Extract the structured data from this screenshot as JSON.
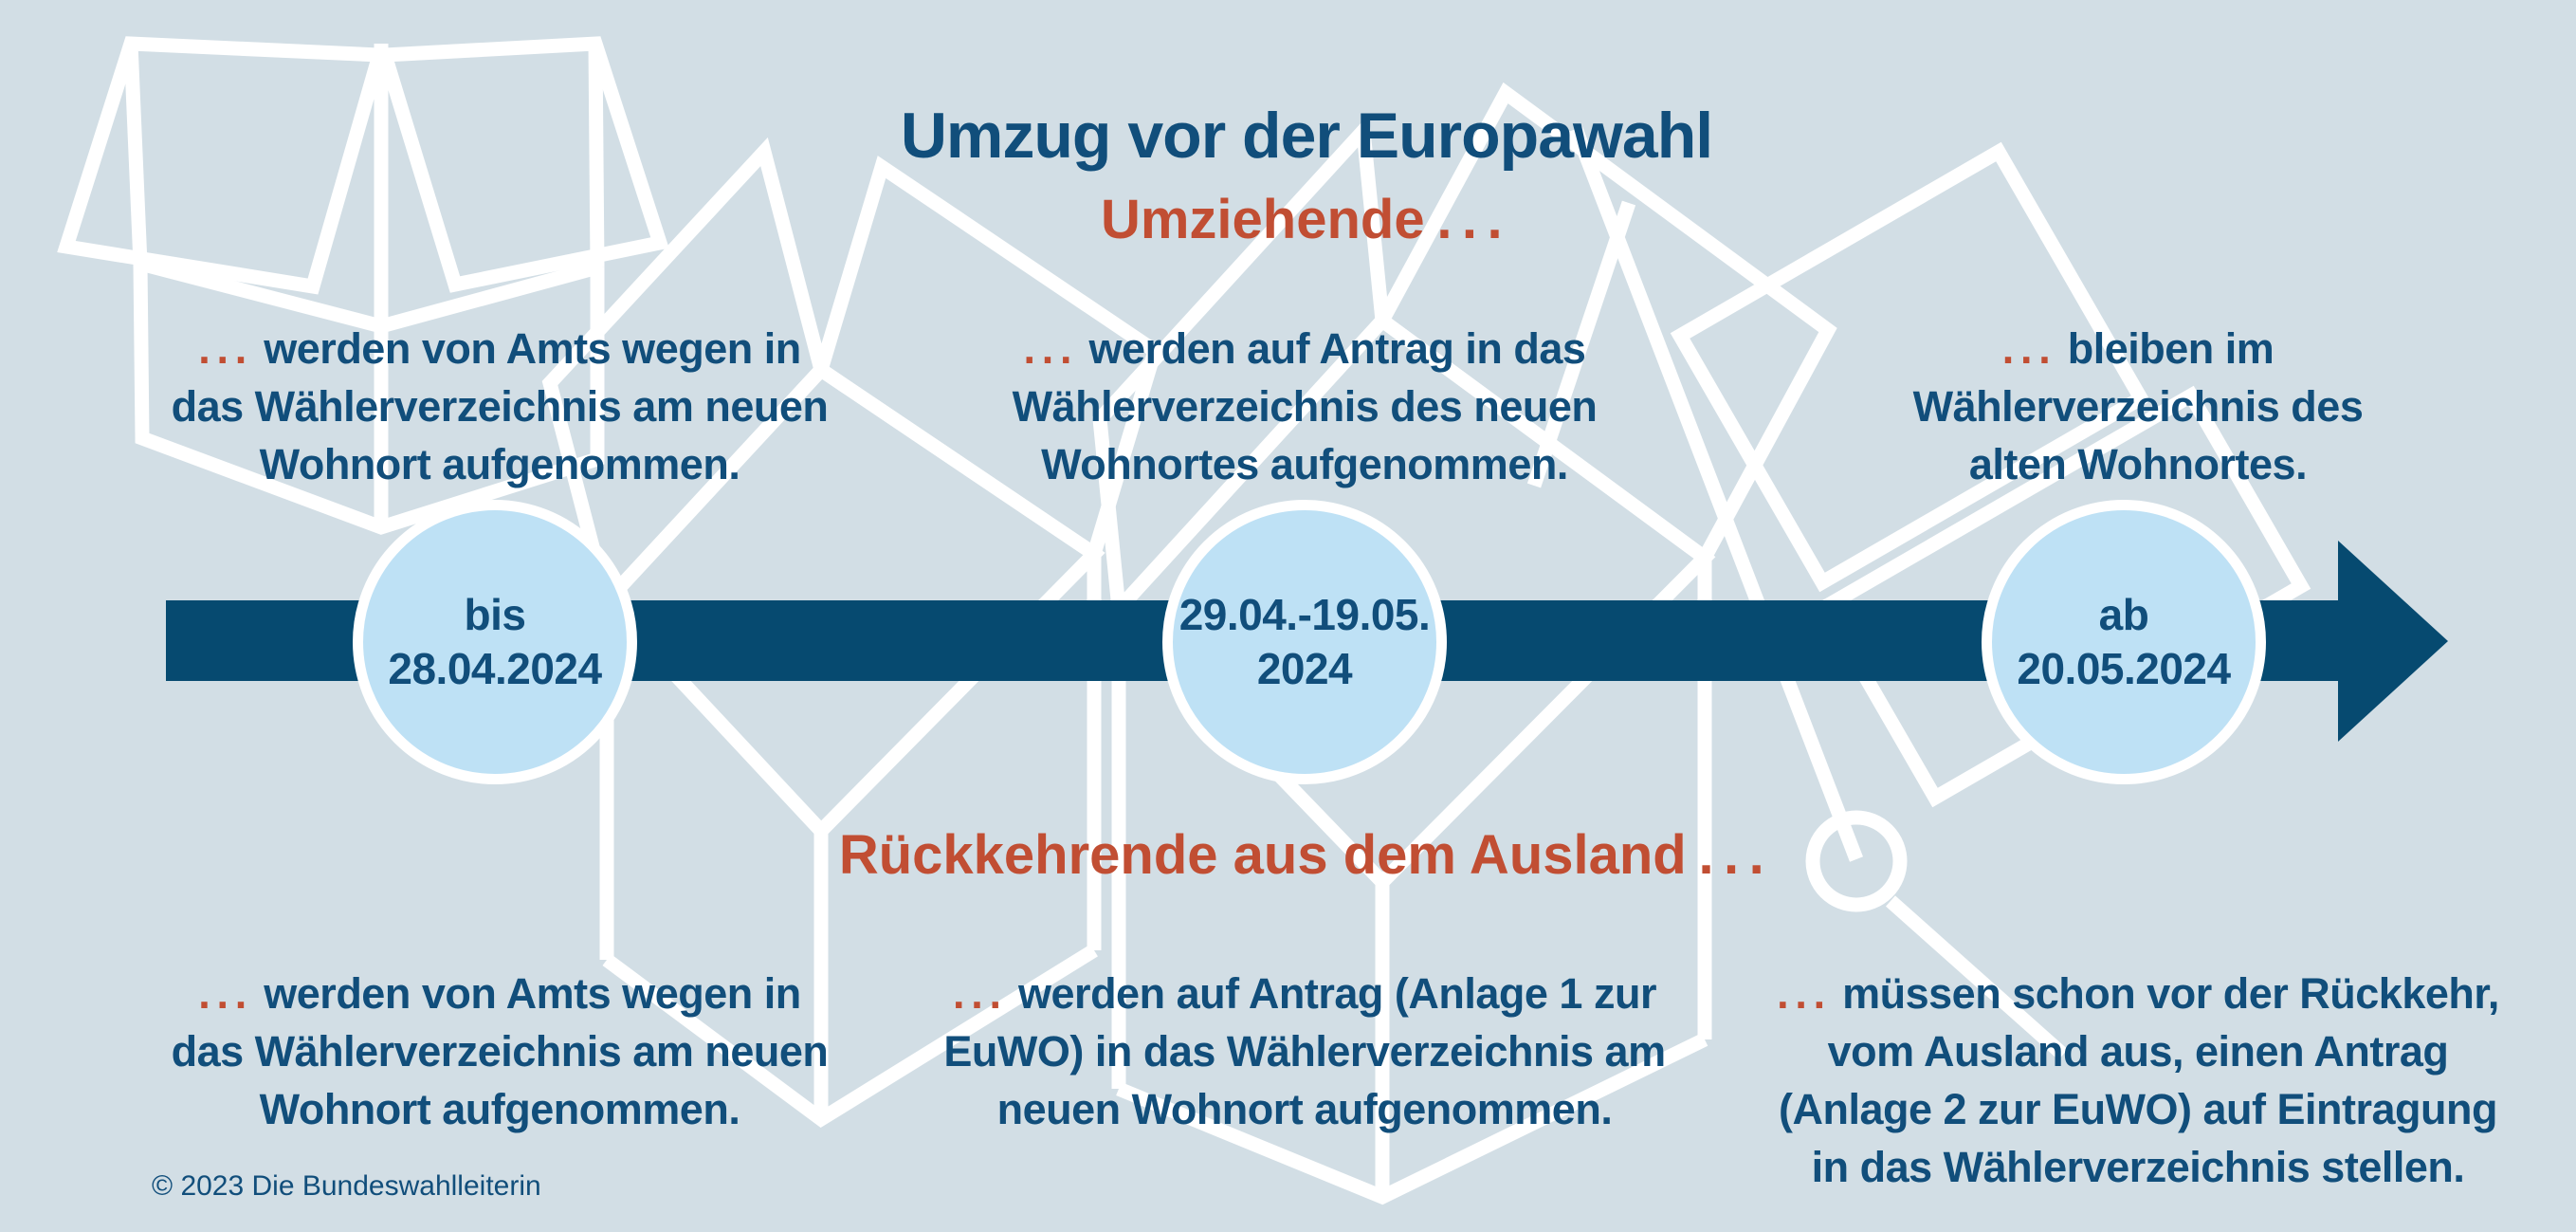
{
  "infographic": {
    "title": "Umzug vor der Europawahl",
    "sections": {
      "movers": {
        "heading": {
          "label": "Umziehende",
          "dots": "..."
        },
        "notes": [
          {
            "dots": "...",
            "lines": [
              "werden von Amts wegen in",
              "das Wählerverzeichnis am neuen",
              "Wohnort aufgenommen."
            ]
          },
          {
            "dots": "...",
            "lines": [
              "werden auf Antrag in das",
              "Wählerverzeichnis des neuen",
              "Wohnortes aufgenommen."
            ]
          },
          {
            "dots": "...",
            "lines": [
              "bleiben im",
              "Wählerverzeichnis des",
              "alten Wohnortes."
            ]
          }
        ]
      },
      "returnees": {
        "heading": {
          "label": "Rückkehrende aus dem Ausland",
          "dots": "..."
        },
        "notes": [
          {
            "dots": "...",
            "lines": [
              "werden von Amts wegen in",
              "das Wählerverzeichnis am neuen",
              "Wohnort aufgenommen."
            ]
          },
          {
            "dots": "...",
            "lines": [
              "werden auf Antrag (Anlage 1 zur",
              "EuWO) in das Wählerverzeichnis am",
              "neuen Wohnort aufgenommen."
            ]
          },
          {
            "dots": "...",
            "lines": [
              "müssen schon vor der Rückkehr,",
              "vom Ausland aus, einen Antrag",
              "(Anlage 2 zur EuWO) auf Eintragung",
              "in das Wählerverzeichnis stellen."
            ]
          }
        ]
      }
    },
    "timeline": {
      "milestones": [
        {
          "lines": [
            "bis",
            "28.04.2024"
          ]
        },
        {
          "lines": [
            "29.04.-19.05.",
            "2024"
          ]
        },
        {
          "lines": [
            "ab",
            "20.05.2024"
          ]
        }
      ]
    },
    "footer": {
      "copyright": "© 2023 Die Bundeswahlleiterin"
    },
    "colors": {
      "background": "#d2dee5",
      "timeline_blue": "#064a70",
      "text_blue": "#114e7b",
      "accent_orange": "#c14e33",
      "circle_fill": "#bee1f5",
      "outline_white": "#ffffff",
      "box_face": "#cfdce4",
      "box_rim": "#d7e1e8"
    },
    "decorations": [
      "open-moving-box-icon",
      "stacked-moving-boxes-icon",
      "hand-truck-with-boxes-icon"
    ]
  }
}
